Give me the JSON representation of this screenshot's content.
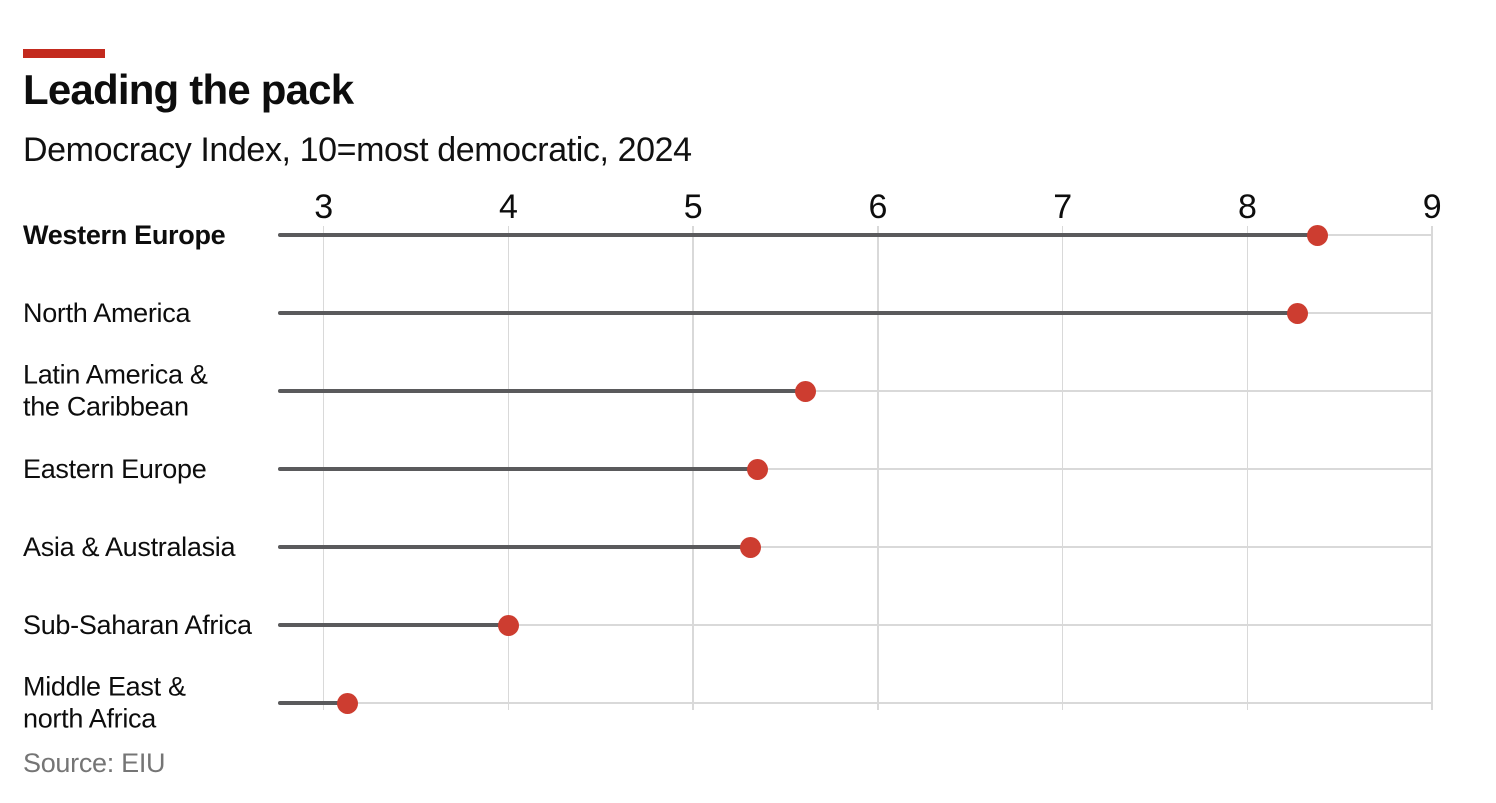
{
  "header": {
    "title": "Leading the pack",
    "subtitle": "Democracy Index, 10=most democratic, 2024"
  },
  "footer": {
    "source": "Source: EIU"
  },
  "chart_data": {
    "type": "scatter",
    "variant": "horizontal-lollipop",
    "title": "Leading the pack",
    "subtitle": "Democracy Index, 10=most democratic, 2024",
    "categories": [
      "Western Europe",
      "North America",
      "Latin America & the Caribbean",
      "Eastern Europe",
      "Asia & Australasia",
      "Sub-Saharan Africa",
      "Middle East & north Africa"
    ],
    "category_display": [
      "Western Europe",
      "North America",
      "Latin America &\nthe Caribbean",
      "Eastern Europe",
      "Asia & Australasia",
      "Sub-Saharan Africa",
      "Middle East &\nnorth Africa"
    ],
    "emphasized": [
      true,
      false,
      false,
      false,
      false,
      false,
      false
    ],
    "values": [
      8.38,
      8.27,
      5.61,
      5.35,
      5.31,
      4.0,
      3.13
    ],
    "xlabel": "",
    "ylabel": "",
    "xlim": [
      3,
      9
    ],
    "x_ticks": [
      3,
      4,
      5,
      6,
      7,
      8,
      9
    ],
    "grid": "vertical-only",
    "legend": "none",
    "source": "Source: EIU",
    "colors": {
      "dot": "#cd3d30",
      "stem": "#5a5a5c",
      "track": "#d9d9d9",
      "grid": "#d9d9d9",
      "tag": "#c32a1e",
      "text": "#0d0d0d",
      "source_text": "#757575"
    }
  }
}
